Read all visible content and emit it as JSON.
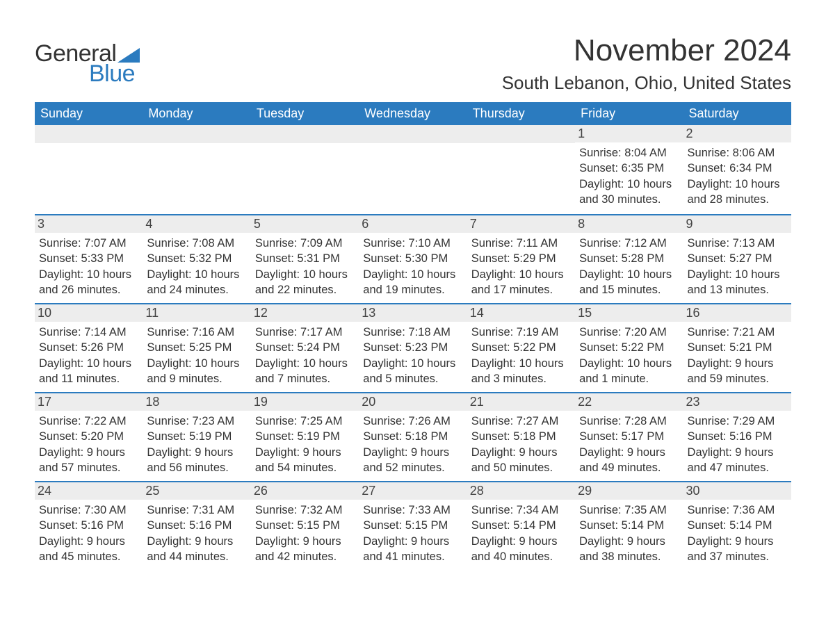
{
  "logo": {
    "general": "General",
    "blue": "Blue"
  },
  "title": "November 2024",
  "location": "South Lebanon, Ohio, United States",
  "colors": {
    "header_bg": "#2b7bbf",
    "row_border": "#2b7bbf",
    "daynum_bg": "#ededed",
    "text": "#333333",
    "logo_blue": "#2b7bbf"
  },
  "weekdays": [
    "Sunday",
    "Monday",
    "Tuesday",
    "Wednesday",
    "Thursday",
    "Friday",
    "Saturday"
  ],
  "weeks": [
    [
      null,
      null,
      null,
      null,
      null,
      {
        "n": "1",
        "sunrise": "Sunrise: 8:04 AM",
        "sunset": "Sunset: 6:35 PM",
        "day1": "Daylight: 10 hours",
        "day2": "and 30 minutes."
      },
      {
        "n": "2",
        "sunrise": "Sunrise: 8:06 AM",
        "sunset": "Sunset: 6:34 PM",
        "day1": "Daylight: 10 hours",
        "day2": "and 28 minutes."
      }
    ],
    [
      {
        "n": "3",
        "sunrise": "Sunrise: 7:07 AM",
        "sunset": "Sunset: 5:33 PM",
        "day1": "Daylight: 10 hours",
        "day2": "and 26 minutes."
      },
      {
        "n": "4",
        "sunrise": "Sunrise: 7:08 AM",
        "sunset": "Sunset: 5:32 PM",
        "day1": "Daylight: 10 hours",
        "day2": "and 24 minutes."
      },
      {
        "n": "5",
        "sunrise": "Sunrise: 7:09 AM",
        "sunset": "Sunset: 5:31 PM",
        "day1": "Daylight: 10 hours",
        "day2": "and 22 minutes."
      },
      {
        "n": "6",
        "sunrise": "Sunrise: 7:10 AM",
        "sunset": "Sunset: 5:30 PM",
        "day1": "Daylight: 10 hours",
        "day2": "and 19 minutes."
      },
      {
        "n": "7",
        "sunrise": "Sunrise: 7:11 AM",
        "sunset": "Sunset: 5:29 PM",
        "day1": "Daylight: 10 hours",
        "day2": "and 17 minutes."
      },
      {
        "n": "8",
        "sunrise": "Sunrise: 7:12 AM",
        "sunset": "Sunset: 5:28 PM",
        "day1": "Daylight: 10 hours",
        "day2": "and 15 minutes."
      },
      {
        "n": "9",
        "sunrise": "Sunrise: 7:13 AM",
        "sunset": "Sunset: 5:27 PM",
        "day1": "Daylight: 10 hours",
        "day2": "and 13 minutes."
      }
    ],
    [
      {
        "n": "10",
        "sunrise": "Sunrise: 7:14 AM",
        "sunset": "Sunset: 5:26 PM",
        "day1": "Daylight: 10 hours",
        "day2": "and 11 minutes."
      },
      {
        "n": "11",
        "sunrise": "Sunrise: 7:16 AM",
        "sunset": "Sunset: 5:25 PM",
        "day1": "Daylight: 10 hours",
        "day2": "and 9 minutes."
      },
      {
        "n": "12",
        "sunrise": "Sunrise: 7:17 AM",
        "sunset": "Sunset: 5:24 PM",
        "day1": "Daylight: 10 hours",
        "day2": "and 7 minutes."
      },
      {
        "n": "13",
        "sunrise": "Sunrise: 7:18 AM",
        "sunset": "Sunset: 5:23 PM",
        "day1": "Daylight: 10 hours",
        "day2": "and 5 minutes."
      },
      {
        "n": "14",
        "sunrise": "Sunrise: 7:19 AM",
        "sunset": "Sunset: 5:22 PM",
        "day1": "Daylight: 10 hours",
        "day2": "and 3 minutes."
      },
      {
        "n": "15",
        "sunrise": "Sunrise: 7:20 AM",
        "sunset": "Sunset: 5:22 PM",
        "day1": "Daylight: 10 hours",
        "day2": "and 1 minute."
      },
      {
        "n": "16",
        "sunrise": "Sunrise: 7:21 AM",
        "sunset": "Sunset: 5:21 PM",
        "day1": "Daylight: 9 hours",
        "day2": "and 59 minutes."
      }
    ],
    [
      {
        "n": "17",
        "sunrise": "Sunrise: 7:22 AM",
        "sunset": "Sunset: 5:20 PM",
        "day1": "Daylight: 9 hours",
        "day2": "and 57 minutes."
      },
      {
        "n": "18",
        "sunrise": "Sunrise: 7:23 AM",
        "sunset": "Sunset: 5:19 PM",
        "day1": "Daylight: 9 hours",
        "day2": "and 56 minutes."
      },
      {
        "n": "19",
        "sunrise": "Sunrise: 7:25 AM",
        "sunset": "Sunset: 5:19 PM",
        "day1": "Daylight: 9 hours",
        "day2": "and 54 minutes."
      },
      {
        "n": "20",
        "sunrise": "Sunrise: 7:26 AM",
        "sunset": "Sunset: 5:18 PM",
        "day1": "Daylight: 9 hours",
        "day2": "and 52 minutes."
      },
      {
        "n": "21",
        "sunrise": "Sunrise: 7:27 AM",
        "sunset": "Sunset: 5:18 PM",
        "day1": "Daylight: 9 hours",
        "day2": "and 50 minutes."
      },
      {
        "n": "22",
        "sunrise": "Sunrise: 7:28 AM",
        "sunset": "Sunset: 5:17 PM",
        "day1": "Daylight: 9 hours",
        "day2": "and 49 minutes."
      },
      {
        "n": "23",
        "sunrise": "Sunrise: 7:29 AM",
        "sunset": "Sunset: 5:16 PM",
        "day1": "Daylight: 9 hours",
        "day2": "and 47 minutes."
      }
    ],
    [
      {
        "n": "24",
        "sunrise": "Sunrise: 7:30 AM",
        "sunset": "Sunset: 5:16 PM",
        "day1": "Daylight: 9 hours",
        "day2": "and 45 minutes."
      },
      {
        "n": "25",
        "sunrise": "Sunrise: 7:31 AM",
        "sunset": "Sunset: 5:16 PM",
        "day1": "Daylight: 9 hours",
        "day2": "and 44 minutes."
      },
      {
        "n": "26",
        "sunrise": "Sunrise: 7:32 AM",
        "sunset": "Sunset: 5:15 PM",
        "day1": "Daylight: 9 hours",
        "day2": "and 42 minutes."
      },
      {
        "n": "27",
        "sunrise": "Sunrise: 7:33 AM",
        "sunset": "Sunset: 5:15 PM",
        "day1": "Daylight: 9 hours",
        "day2": "and 41 minutes."
      },
      {
        "n": "28",
        "sunrise": "Sunrise: 7:34 AM",
        "sunset": "Sunset: 5:14 PM",
        "day1": "Daylight: 9 hours",
        "day2": "and 40 minutes."
      },
      {
        "n": "29",
        "sunrise": "Sunrise: 7:35 AM",
        "sunset": "Sunset: 5:14 PM",
        "day1": "Daylight: 9 hours",
        "day2": "and 38 minutes."
      },
      {
        "n": "30",
        "sunrise": "Sunrise: 7:36 AM",
        "sunset": "Sunset: 5:14 PM",
        "day1": "Daylight: 9 hours",
        "day2": "and 37 minutes."
      }
    ]
  ]
}
